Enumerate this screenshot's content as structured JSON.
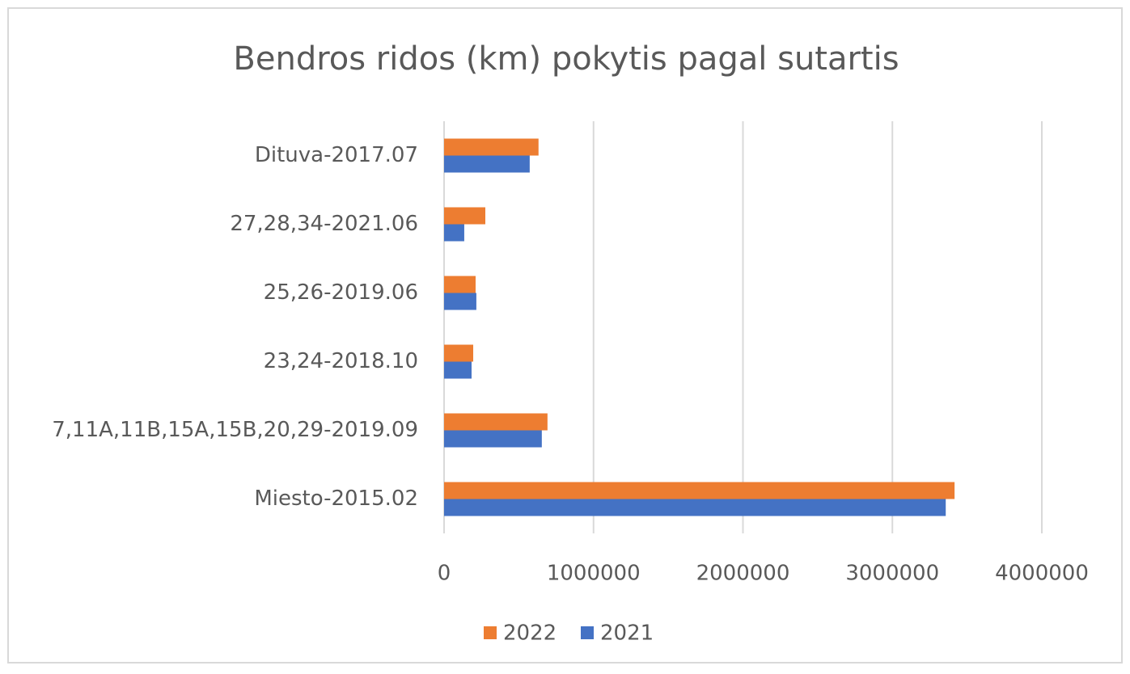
{
  "chart_data": {
    "type": "bar",
    "orientation": "horizontal",
    "title": "Bendros ridos (km) pokytis pagal sutartis",
    "categories": [
      "Dituva-2017.07",
      "27,28,34-2021.06",
      "25,26-2019.06",
      "23,24-2018.10",
      "7,11A,11B,15A,15B,20,29-2019.09",
      "Miesto-2015.02"
    ],
    "series": [
      {
        "name": "2022",
        "color": "#ed7d31",
        "values": [
          632000,
          276000,
          211000,
          195000,
          692000,
          3416000
        ]
      },
      {
        "name": "2021",
        "color": "#4472c4",
        "values": [
          573000,
          135000,
          216000,
          184000,
          654000,
          3357000
        ]
      }
    ],
    "xlim": [
      0,
      4000000
    ],
    "xticks": [
      0,
      1000000,
      2000000,
      3000000,
      4000000
    ],
    "grid": true,
    "legend": "bottom"
  }
}
